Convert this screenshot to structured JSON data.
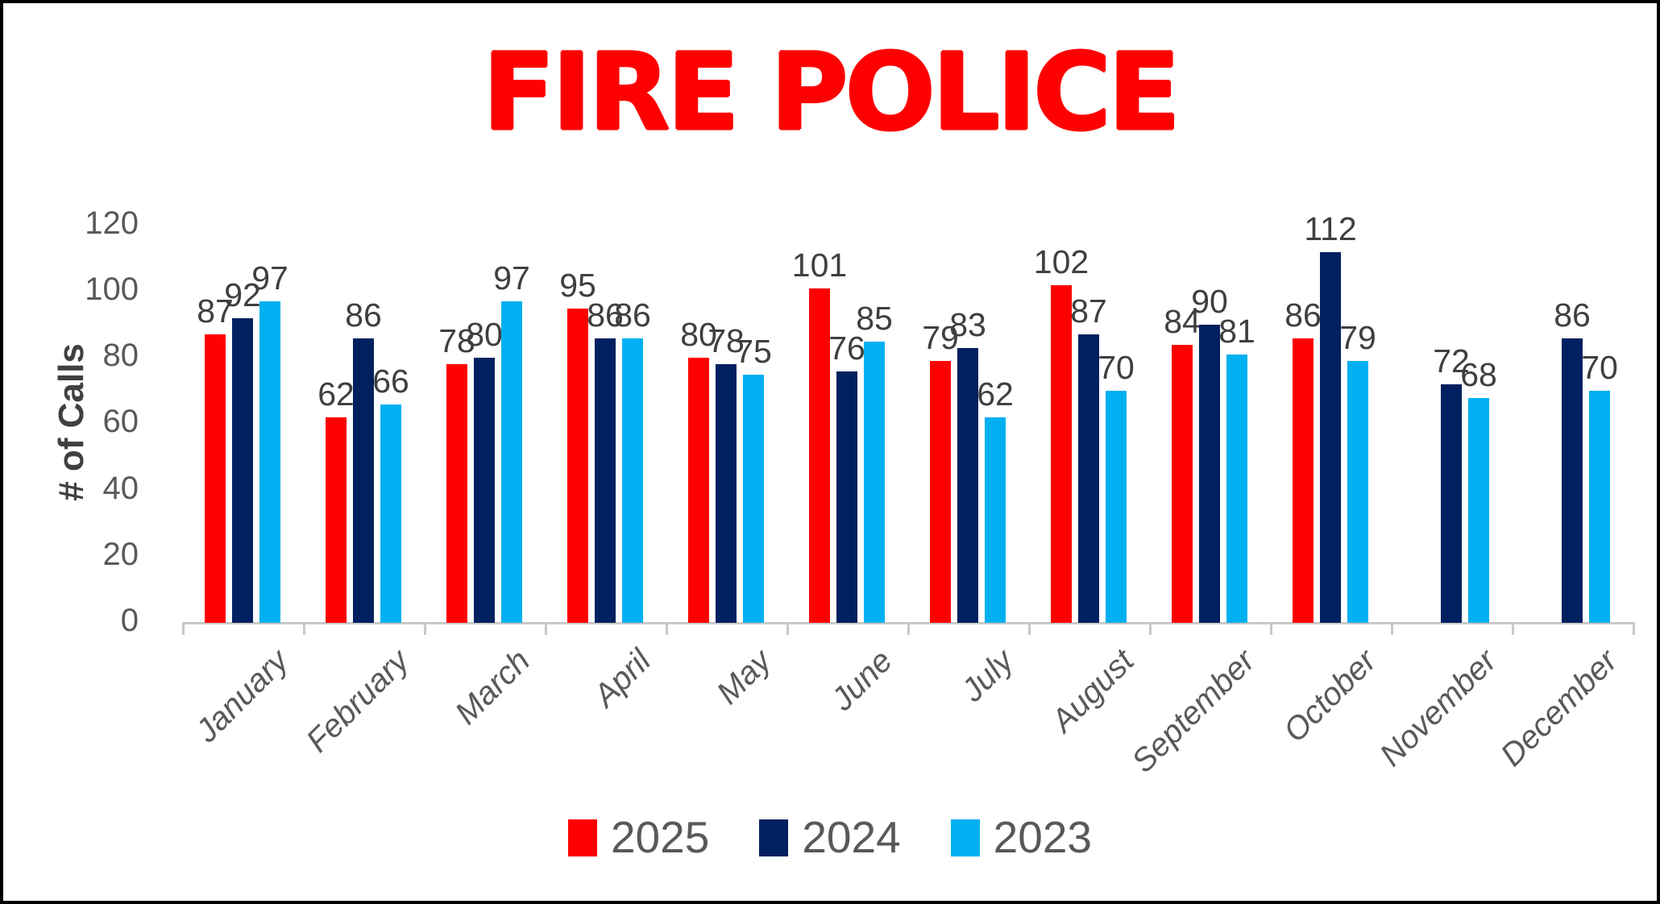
{
  "title": {
    "text": "FIRE POLICE",
    "color": "#FF0000"
  },
  "chart_data": {
    "type": "bar",
    "title": "FIRE POLICE",
    "xlabel": "",
    "ylabel": "# of Calls",
    "ylim": [
      0,
      120
    ],
    "yticks": [
      0,
      20,
      40,
      60,
      80,
      100,
      120
    ],
    "grid": false,
    "data_labels": true,
    "legend_position": "bottom",
    "axis_color": "#C9C9C9",
    "tick_label_color": "#595959",
    "data_label_color": "#3f3f3f",
    "categories": [
      "January",
      "February",
      "March",
      "April",
      "May",
      "June",
      "July",
      "August",
      "September",
      "October",
      "November",
      "December"
    ],
    "series": [
      {
        "name": "2025",
        "color": "#FF0000",
        "values": [
          87,
          62,
          78,
          95,
          80,
          101,
          79,
          102,
          84,
          86,
          null,
          null
        ]
      },
      {
        "name": "2024",
        "color": "#002060",
        "values": [
          92,
          86,
          80,
          86,
          78,
          76,
          83,
          87,
          90,
          112,
          72,
          86
        ]
      },
      {
        "name": "2023",
        "color": "#00B0F0",
        "values": [
          97,
          66,
          97,
          86,
          75,
          85,
          62,
          70,
          81,
          79,
          68,
          70
        ]
      }
    ]
  }
}
